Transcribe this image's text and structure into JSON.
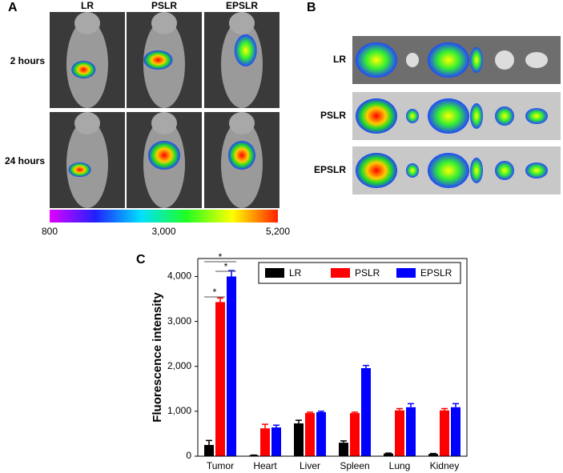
{
  "panel_a": {
    "label": "A",
    "columns": [
      "LR",
      "PSLR",
      "EPSLR"
    ],
    "rows": [
      "2 hours",
      "24 hours"
    ],
    "colorbar": {
      "lim": [
        800,
        5200
      ],
      "ticks": [
        800,
        {
          "value": 3000,
          "label": "3,000"
        },
        {
          "value": 5200,
          "label": "5,200"
        }
      ]
    }
  },
  "panel_b": {
    "label": "B",
    "rows": [
      "LR",
      "PSLR",
      "EPSLR"
    ]
  },
  "chart_data": {
    "type": "bar",
    "panel_label": "C",
    "ylabel": "Fluorescence intensity",
    "categories": [
      "Tumor",
      "Heart",
      "Liver",
      "Spleen",
      "Lung",
      "Kidney"
    ],
    "series": [
      {
        "name": "LR",
        "color": "#000000",
        "values": [
          250,
          20,
          730,
          300,
          60,
          50
        ],
        "errors": [
          100,
          5,
          70,
          40,
          10,
          10
        ]
      },
      {
        "name": "PSLR",
        "color": "#ff0000",
        "values": [
          3430,
          620,
          960,
          960,
          1020,
          1020
        ],
        "errors": [
          90,
          90,
          20,
          20,
          40,
          40
        ]
      },
      {
        "name": "EPSLR",
        "color": "#0000ff",
        "values": [
          4000,
          640,
          980,
          1960,
          1090,
          1090
        ],
        "errors": [
          130,
          50,
          20,
          60,
          80,
          80
        ]
      }
    ],
    "ylim": [
      0,
      4400
    ],
    "yticks": [
      0,
      {
        "value": 1000,
        "label": "1,000"
      },
      {
        "value": 2000,
        "label": "2,000"
      },
      {
        "value": 3000,
        "label": "3,000"
      },
      {
        "value": 4000,
        "label": "4,000"
      }
    ],
    "legend": "upper right",
    "annotations": [
      {
        "label": "*"
      },
      {
        "label": "*"
      },
      {
        "label": "*"
      }
    ]
  }
}
